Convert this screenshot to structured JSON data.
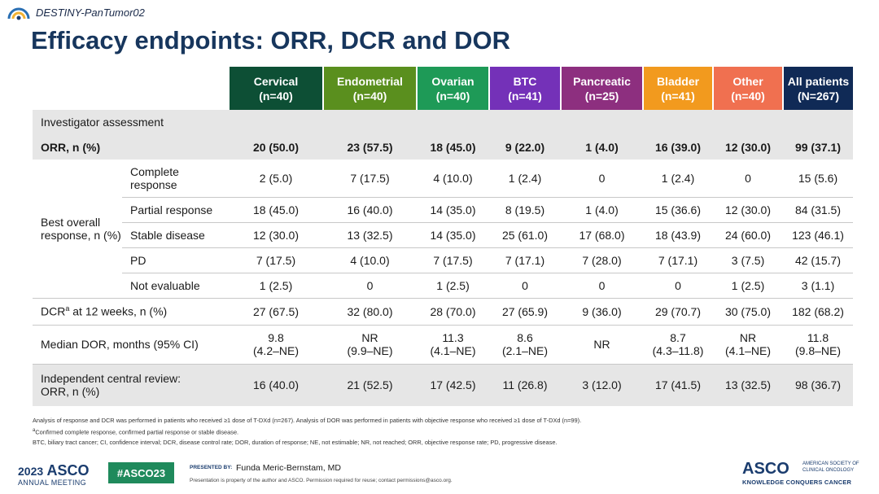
{
  "topbar": {
    "trial_name": "DESTINY-PanTumor02"
  },
  "title": "Efficacy endpoints: ORR, DCR and DOR",
  "columns": [
    {
      "name": "Cervical",
      "n": "(n=40)",
      "color": "#0d4f35"
    },
    {
      "name": "Endometrial",
      "n": "(n=40)",
      "color": "#5a8f1e"
    },
    {
      "name": "Ovarian",
      "n": "(n=40)",
      "color": "#1e9a57"
    },
    {
      "name": "BTC",
      "n": "(n=41)",
      "color": "#7431b8"
    },
    {
      "name": "Pancreatic",
      "n": "(n=25)",
      "color": "#8d2f7f"
    },
    {
      "name": "Bladder",
      "n": "(n=41)",
      "color": "#f29a1e"
    },
    {
      "name": "Other",
      "n": "(n=40)",
      "color": "#f07050"
    },
    {
      "name": "All patients",
      "n": "(N=267)",
      "color": "#102a56"
    }
  ],
  "section_investigator": "Investigator assessment",
  "orr": {
    "label": "ORR, n (%)",
    "values": [
      "20 (50.0)",
      "23 (57.5)",
      "18 (45.0)",
      "9 (22.0)",
      "1 (4.0)",
      "16 (39.0)",
      "12 (30.0)",
      "99 (37.1)"
    ]
  },
  "bor": {
    "group_label": "Best overall response, n (%)",
    "rows": [
      {
        "label": "Complete response",
        "values": [
          "2 (5.0)",
          "7 (17.5)",
          "4 (10.0)",
          "1 (2.4)",
          "0",
          "1 (2.4)",
          "0",
          "15 (5.6)"
        ]
      },
      {
        "label": "Partial response",
        "values": [
          "18 (45.0)",
          "16 (40.0)",
          "14 (35.0)",
          "8 (19.5)",
          "1 (4.0)",
          "15 (36.6)",
          "12 (30.0)",
          "84 (31.5)"
        ]
      },
      {
        "label": "Stable disease",
        "values": [
          "12 (30.0)",
          "13 (32.5)",
          "14 (35.0)",
          "25 (61.0)",
          "17 (68.0)",
          "18 (43.9)",
          "24 (60.0)",
          "123 (46.1)"
        ]
      },
      {
        "label": "PD",
        "values": [
          "7 (17.5)",
          "4 (10.0)",
          "7 (17.5)",
          "7 (17.1)",
          "7 (28.0)",
          "7 (17.1)",
          "3 (7.5)",
          "42 (15.7)"
        ]
      },
      {
        "label": "Not evaluable",
        "values": [
          "1 (2.5)",
          "0",
          "1 (2.5)",
          "0",
          "0",
          "0",
          "1 (2.5)",
          "3 (1.1)"
        ]
      }
    ]
  },
  "dcr": {
    "label_pre": "DCR",
    "label_sup": "a",
    "label_post": " at 12 weeks, n (%)",
    "values": [
      "27 (67.5)",
      "32 (80.0)",
      "28 (70.0)",
      "27 (65.9)",
      "9 (36.0)",
      "29 (70.7)",
      "30 (75.0)",
      "182 (68.2)"
    ]
  },
  "dor": {
    "label": "Median DOR, months (95% CI)",
    "values": [
      {
        "est": "9.8",
        "ci": "(4.2–NE)"
      },
      {
        "est": "NR",
        "ci": "(9.9–NE)"
      },
      {
        "est": "11.3",
        "ci": "(4.1–NE)"
      },
      {
        "est": "8.6",
        "ci": "(2.1–NE)"
      },
      {
        "est": "NR",
        "ci": ""
      },
      {
        "est": "8.7",
        "ci": "(4.3–11.8)"
      },
      {
        "est": "NR",
        "ci": "(4.1–NE)"
      },
      {
        "est": "11.8",
        "ci": "(9.8–NE)"
      }
    ]
  },
  "icr": {
    "label_line1": "Independent central review:",
    "label_line2": "ORR, n (%)",
    "values": [
      "16 (40.0)",
      "21 (52.5)",
      "17 (42.5)",
      "11 (26.8)",
      "3 (12.0)",
      "17 (41.5)",
      "13 (32.5)",
      "98 (36.7)"
    ]
  },
  "footnotes": {
    "line1": "Analysis of response and DCR was performed in patients who received ≥1 dose of T-DXd (n=267). Analysis of DOR was performed in patients with objective response who received ≥1 dose of T-DXd (n=99).",
    "line2_sup": "a",
    "line2": "Confirmed complete response, confirmed partial response or stable disease.",
    "line3": "BTC, biliary tract cancer; CI, confidence interval; DCR, disease control rate; DOR, duration of response; NE, not estimable; NR, not reached; ORR, objective response rate; PD, progressive disease."
  },
  "footer": {
    "year": "2023",
    "asco": "ASCO",
    "meeting": "ANNUAL MEETING",
    "hashtag": "#ASCO23",
    "presented_by": "PRESENTED BY:",
    "presenter": "Funda Meric-Bernstam, MD",
    "disclaimer": "Presentation is property of the author and ASCO. Permission required for reuse; contact permissions@asco.org.",
    "asco_logo": "ASCO",
    "society_line1": "AMERICAN SOCIETY OF",
    "society_line2": "CLINICAL ONCOLOGY",
    "tagline": "KNOWLEDGE CONQUERS CANCER"
  }
}
